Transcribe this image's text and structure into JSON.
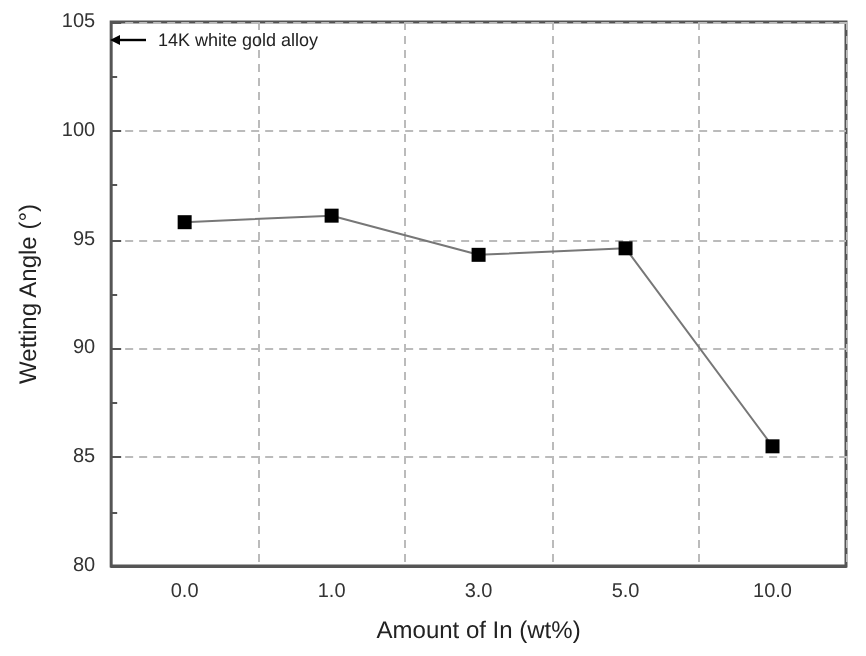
{
  "chart_data": {
    "type": "line",
    "xlabel": "Amount of In (wt%)",
    "ylabel": "Wetting Angle (°)",
    "categories": [
      "0.0",
      "1.0",
      "3.0",
      "5.0",
      "10.0"
    ],
    "values": [
      95.8,
      96.1,
      94.3,
      94.6,
      85.5
    ],
    "color": "#000000",
    "ylim": [
      80,
      105
    ],
    "yticks": [
      80,
      85,
      90,
      95,
      100,
      105
    ],
    "grid": true,
    "marker": "square",
    "line_style": "solid",
    "annotations": [
      "14K white gold alloy"
    ]
  }
}
